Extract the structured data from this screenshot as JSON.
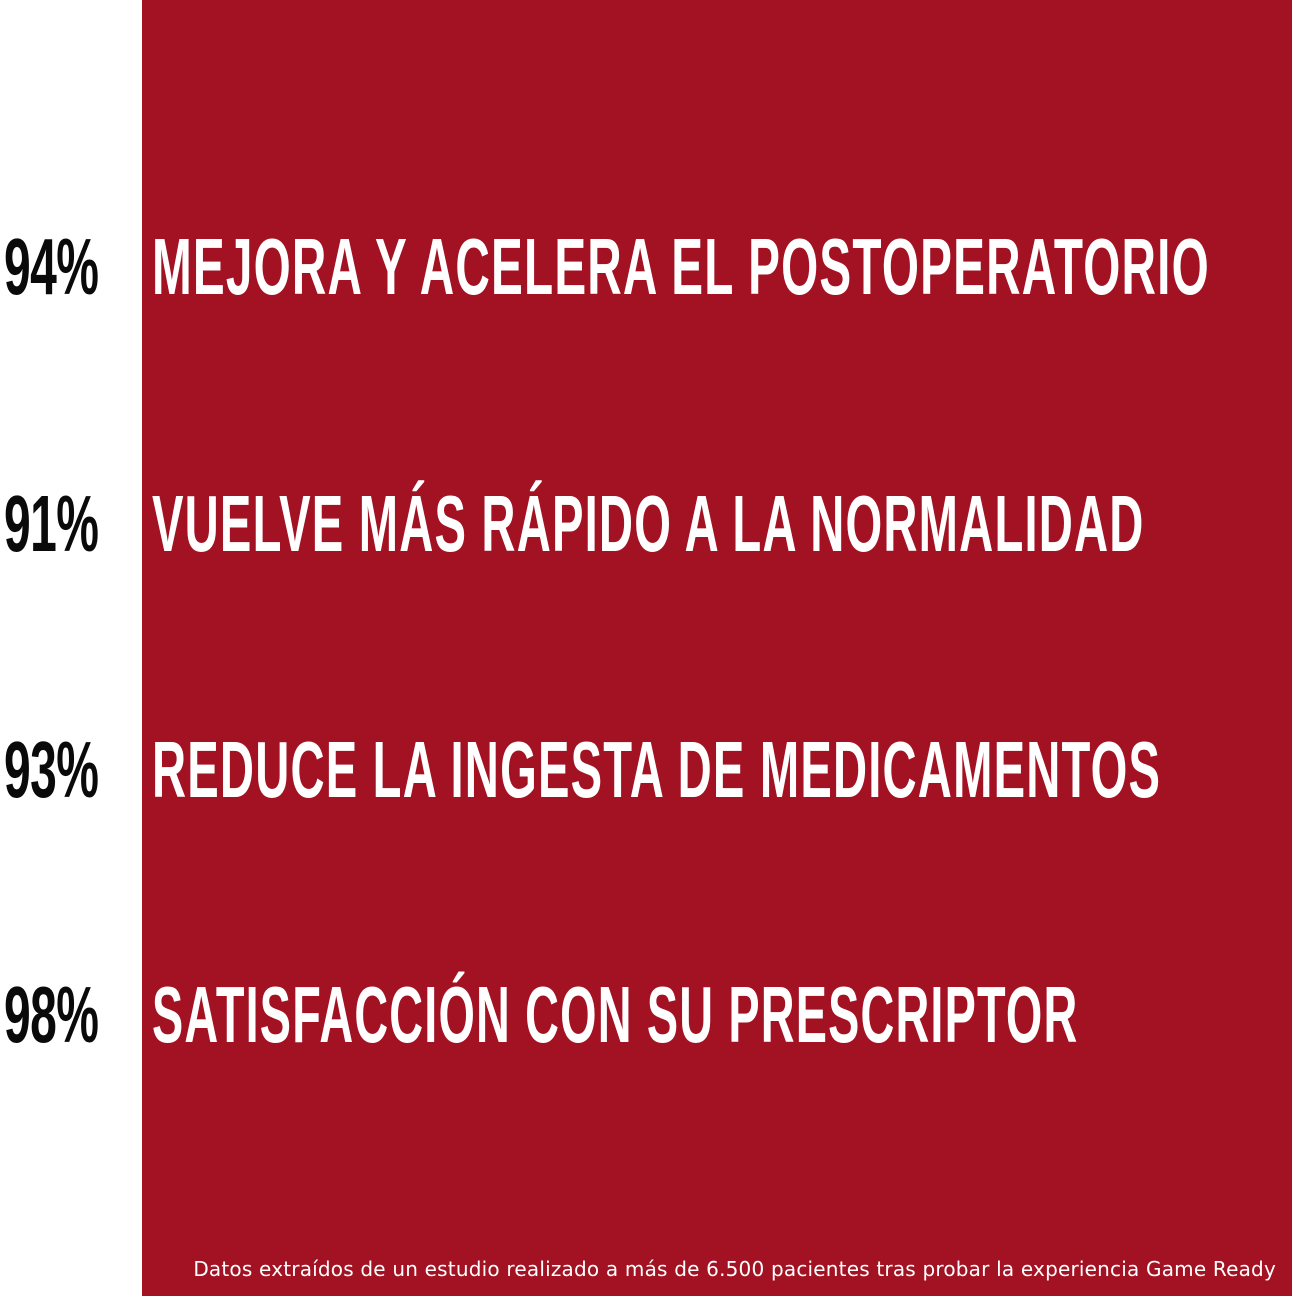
{
  "colors": {
    "background": "#ffffff",
    "panel": "#a31222",
    "percent_text": "#0a0a0a",
    "statement_text": "#ffffff"
  },
  "stats": [
    {
      "percent": "94%",
      "text": "MEJORA Y ACELERA EL POSTOPERATORIO"
    },
    {
      "percent": "91%",
      "text": "VUELVE MÁS RÁPIDO A LA NORMALIDAD"
    },
    {
      "percent": "93%",
      "text": "REDUCE LA INGESTA DE MEDICAMENTOS"
    },
    {
      "percent": "98%",
      "text": "SATISFACCIÓN CON SU PRESCRIPTOR"
    }
  ],
  "footnote": "Datos extraídos de un estudio realizado a más de 6.500 pacientes tras probar la experiencia Game Ready"
}
